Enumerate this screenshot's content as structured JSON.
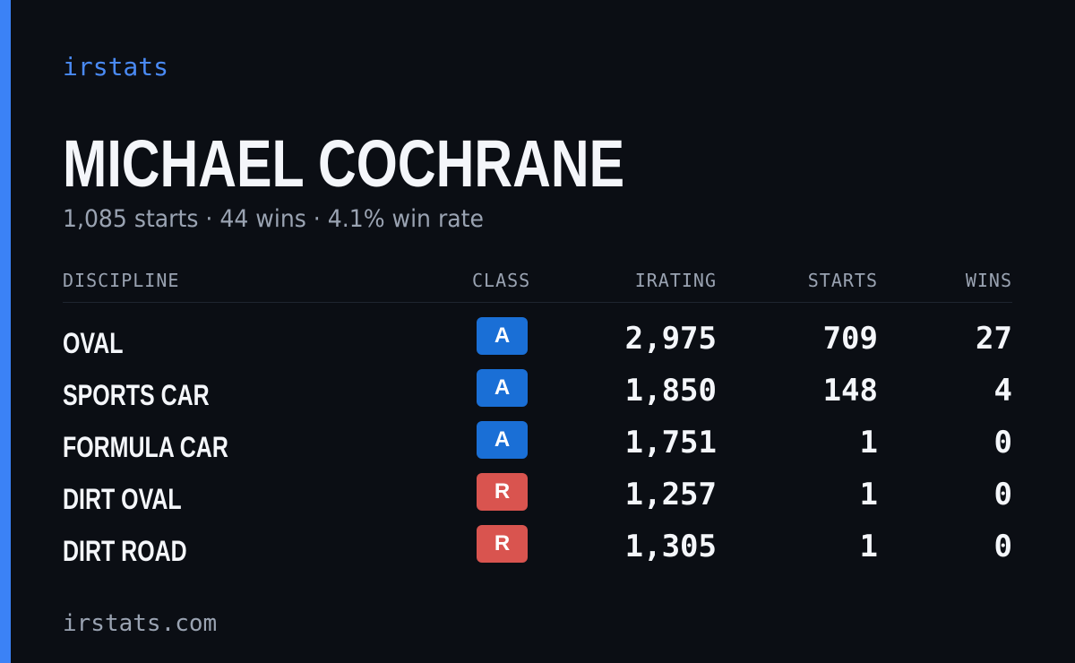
{
  "brand": "irstats",
  "name": "MICHAEL COCHRANE",
  "summary": "1,085 starts · 44 wins · 4.1% win rate",
  "table": {
    "headers": [
      "DISCIPLINE",
      "CLASS",
      "IRATING",
      "STARTS",
      "WINS"
    ],
    "rows": [
      [
        "OVAL",
        "A",
        "2,975",
        "709",
        "27"
      ],
      [
        "SPORTS CAR",
        "A",
        "1,850",
        "148",
        "4"
      ],
      [
        "FORMULA CAR",
        "A",
        "1,751",
        "1",
        "0"
      ],
      [
        "DIRT OVAL",
        "R",
        "1,257",
        "1",
        "0"
      ],
      [
        "DIRT ROAD",
        "R",
        "1,305",
        "1",
        "0"
      ]
    ]
  },
  "footer": "irstats.com"
}
